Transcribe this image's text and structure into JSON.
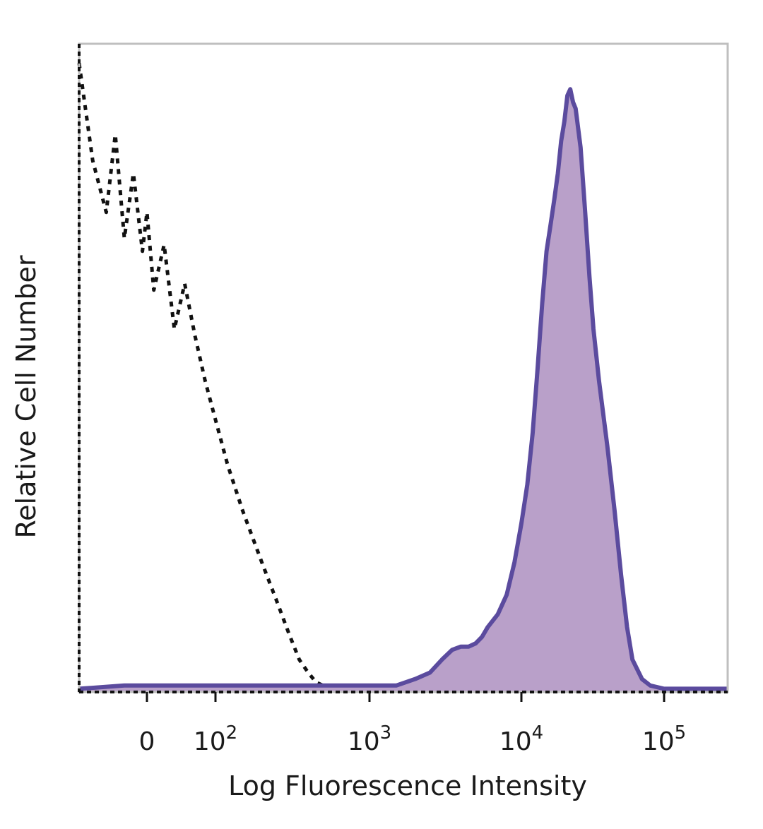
{
  "chart_data": {
    "type": "area",
    "title": "",
    "xlabel": "Log Fluorescence Intensity",
    "ylabel": "Relative Cell Number",
    "x_scale": "biexponential (linear near 0, log above 10^2)",
    "x_ticks": [
      {
        "value": 0,
        "base": "0",
        "exp": ""
      },
      {
        "value": 100,
        "base": "10",
        "exp": "2"
      },
      {
        "value": 1000,
        "base": "10",
        "exp": "3"
      },
      {
        "value": 10000,
        "base": "10",
        "exp": "4"
      },
      {
        "value": 100000,
        "base": "10",
        "exp": "5"
      }
    ],
    "xlim": [
      -150,
      250000
    ],
    "ylim": [
      0,
      100
    ],
    "grid": false,
    "legend": "none",
    "series": [
      {
        "style": "dotted",
        "color": "#111111",
        "fill": "none",
        "x": [
          -150,
          -120,
          -90,
          -70,
          -50,
          -30,
          -10,
          0,
          10,
          25,
          40,
          55,
          70,
          85,
          100,
          120,
          150,
          200,
          250,
          300,
          350,
          400,
          450,
          500,
          600,
          700,
          800,
          1000,
          1500,
          3000,
          10000,
          50000,
          250000
        ],
        "y": [
          97,
          82,
          74,
          86,
          70,
          80,
          68,
          74,
          62,
          69,
          56,
          63,
          55,
          48,
          42,
          35,
          28,
          20,
          14,
          9,
          5,
          3,
          1.5,
          1,
          0.5,
          0.3,
          0.2,
          0.2,
          0.3,
          0.3,
          0.3,
          0.3,
          0.3
        ]
      },
      {
        "style": "solid",
        "color": "#5b4b9e",
        "fill": "#b9a0c9",
        "x": [
          -150,
          -50,
          0,
          100,
          300,
          600,
          1000,
          1500,
          2000,
          2500,
          3000,
          3500,
          4000,
          4500,
          5000,
          5500,
          6000,
          7000,
          8000,
          9000,
          10000,
          11000,
          12000,
          13000,
          14000,
          15000,
          16000,
          17000,
          18000,
          19000,
          20000,
          21000,
          22000,
          23000,
          24000,
          26000,
          28000,
          30000,
          32000,
          35000,
          40000,
          45000,
          50000,
          55000,
          60000,
          70000,
          80000,
          100000,
          250000
        ],
        "y": [
          0.5,
          1,
          1,
          1,
          1,
          1,
          1,
          1,
          2,
          3,
          5,
          6.5,
          7,
          7,
          7.5,
          8.5,
          10,
          12,
          15,
          20,
          26,
          32,
          40,
          50,
          60,
          68,
          72,
          76,
          80,
          85,
          88,
          92,
          93,
          91,
          90,
          84,
          74,
          64,
          56,
          48,
          38,
          28,
          18,
          10,
          5,
          2,
          1,
          0.5,
          0.5
        ]
      }
    ]
  }
}
